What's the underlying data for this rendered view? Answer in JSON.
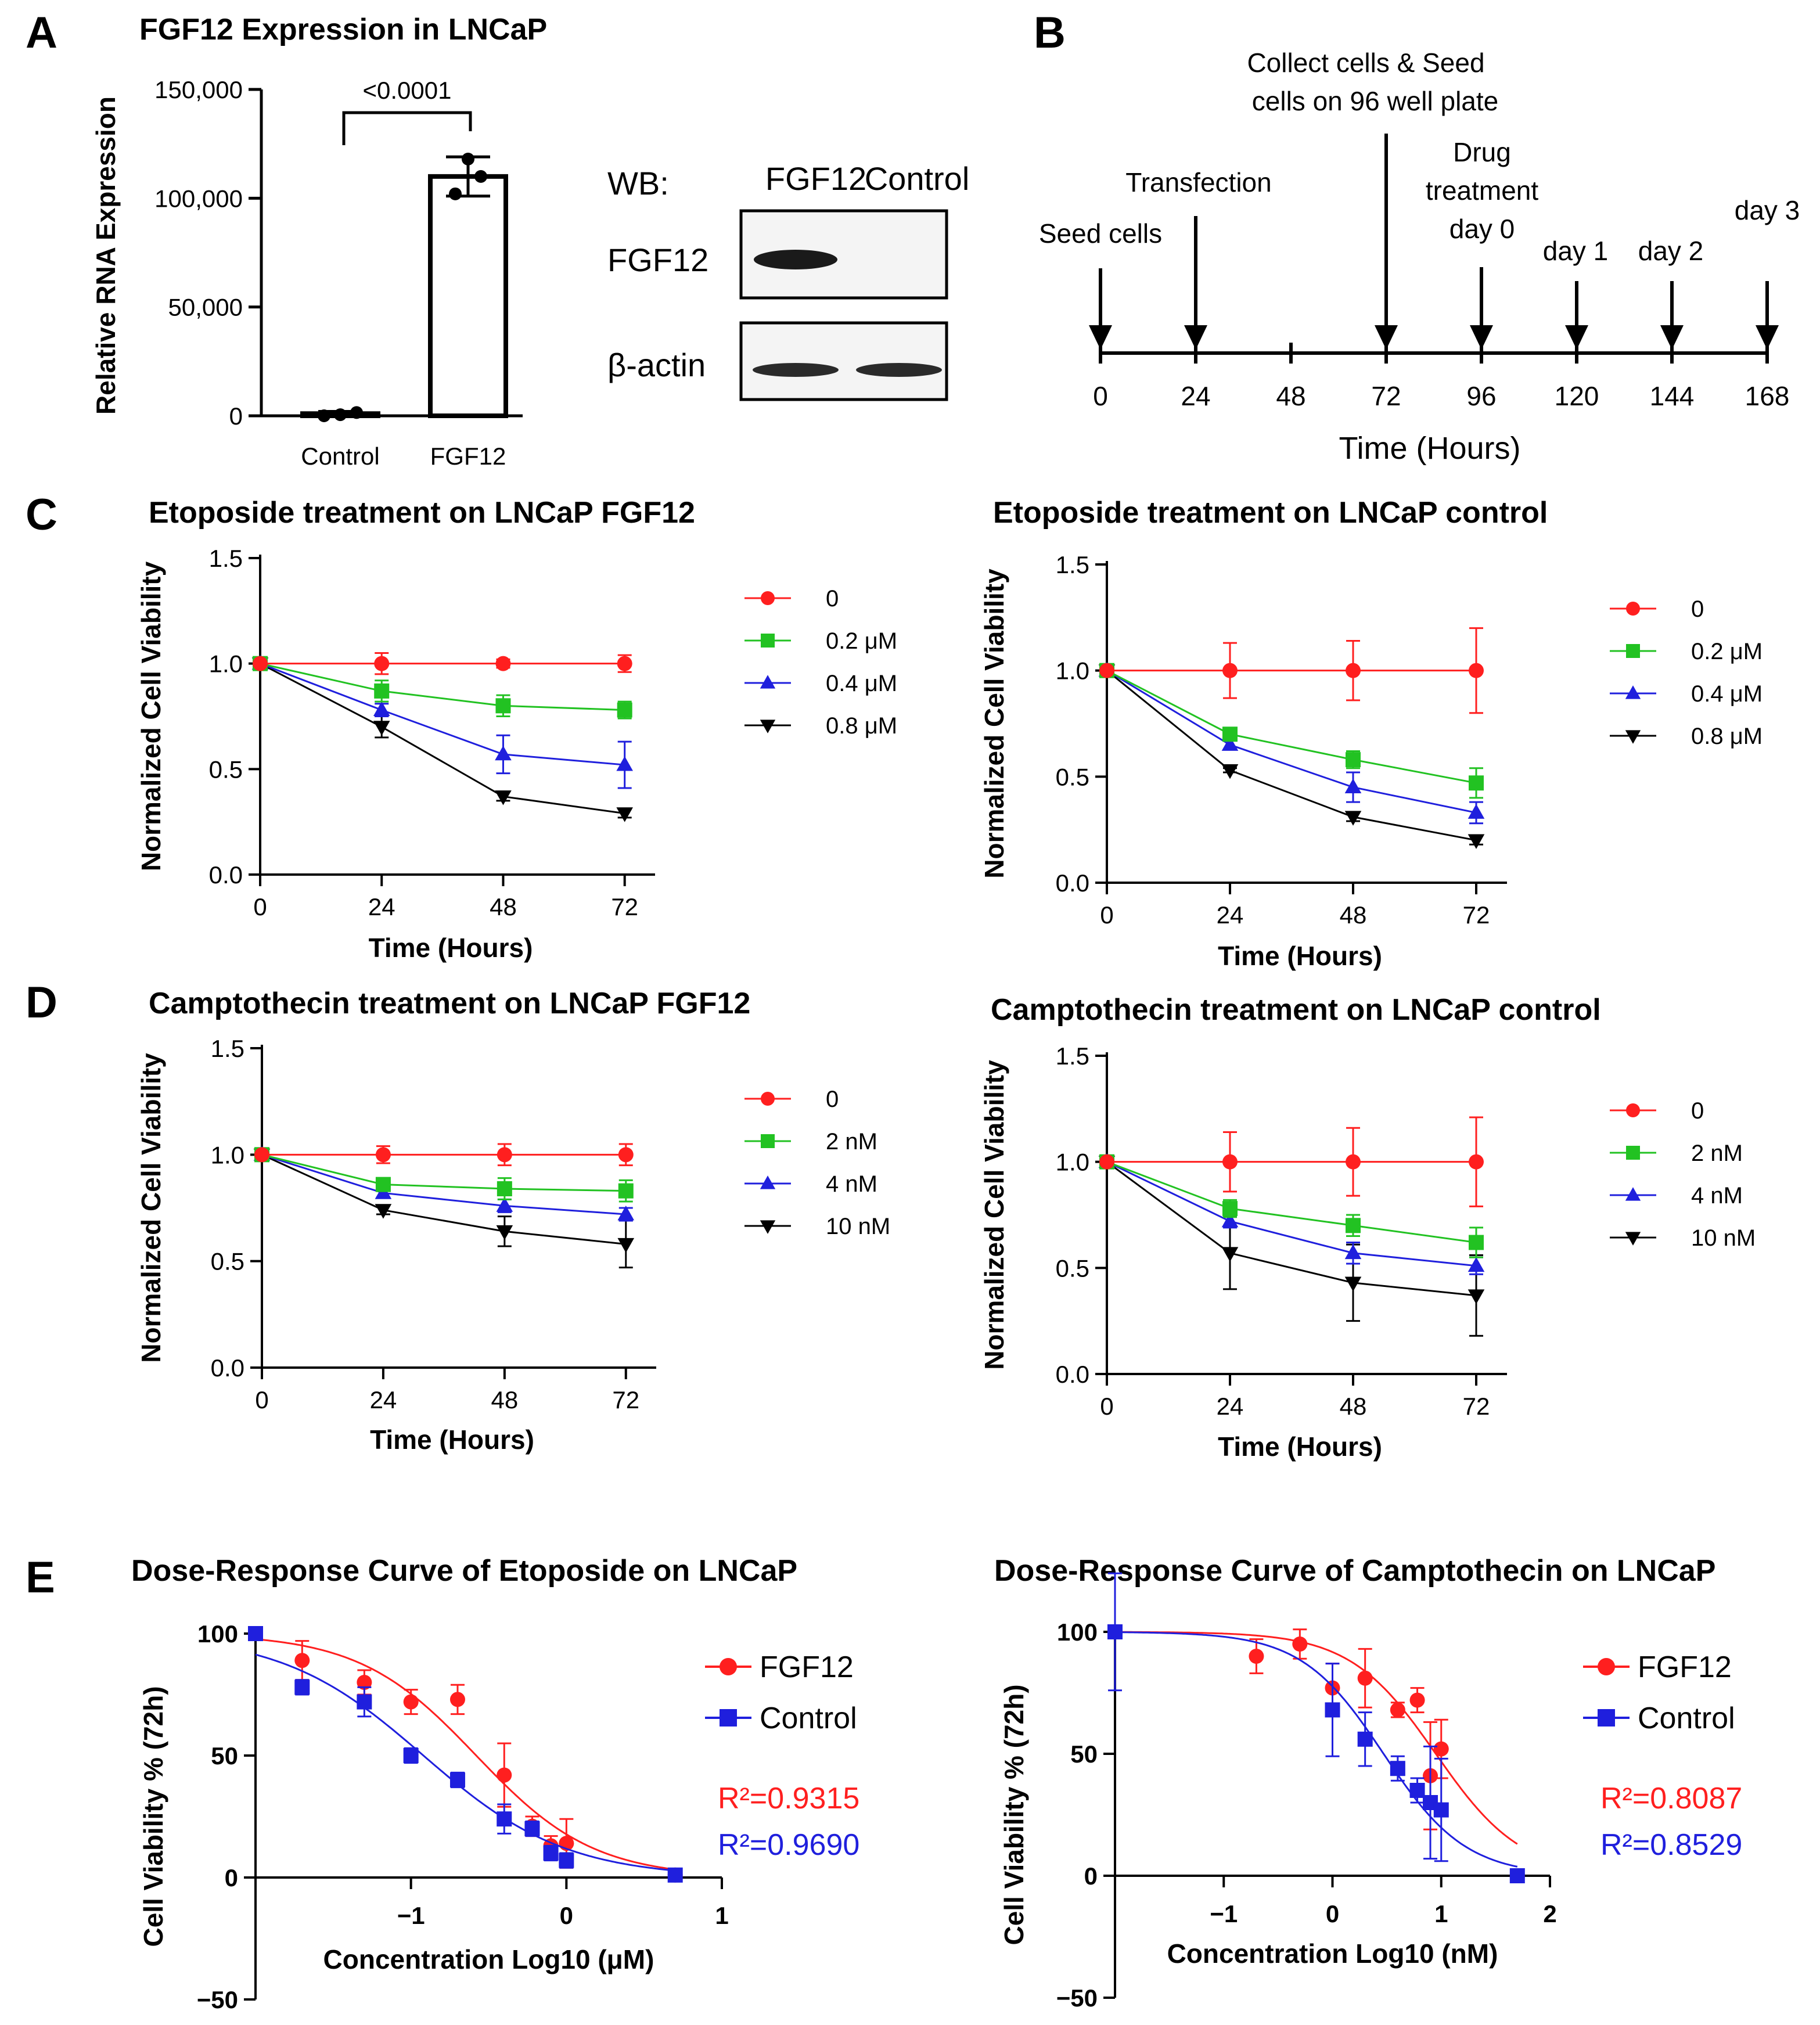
{
  "panel_labels": [
    "A",
    "B",
    "C",
    "D",
    "E"
  ],
  "colors": {
    "red": "#ff1f1f",
    "green": "#22c222",
    "blue": "#1f1fdd",
    "black": "#000000"
  },
  "panel_A": {
    "chart": {
      "type": "bar",
      "title": "FGF12 Expression in LNCaP",
      "ylabel": "Relative RNA Expression",
      "categories": [
        "Control",
        "FGF12"
      ],
      "values": [
        1000,
        110000
      ],
      "errors": [
        1000,
        9000
      ],
      "points": [
        [
          0,
          500,
          1500
        ],
        [
          118000,
          102000,
          110000
        ]
      ],
      "ylim": [
        0,
        150000
      ],
      "ytick_values": [
        0,
        50000,
        100000,
        150000
      ],
      "ytick_labels": [
        "0",
        "50,000",
        "100,000",
        "150,000"
      ],
      "significance": "<0.0001"
    },
    "western_blot": {
      "prefix": "WB:",
      "lanes": [
        "FGF12",
        "Control"
      ],
      "rows": [
        "FGF12",
        "β-actin"
      ]
    }
  },
  "panel_B": {
    "xlabel": "Time (Hours)",
    "ticks": [
      "0",
      "24",
      "48",
      "72",
      "96",
      "120",
      "144",
      "168"
    ],
    "tick_values": [
      0,
      24,
      48,
      72,
      96,
      120,
      144,
      168
    ],
    "events": [
      {
        "lines": [
          "Seed cells"
        ],
        "at": 0
      },
      {
        "lines": [
          "Transfection"
        ],
        "at": 24
      },
      {
        "lines": [
          "Collect cells & Seed",
          "cells on 96 well plate"
        ],
        "at": 72
      },
      {
        "lines": [
          "Drug",
          "treatment",
          "day 0"
        ],
        "at": 96
      },
      {
        "lines": [
          "day 1"
        ],
        "at": 120
      },
      {
        "lines": [
          "day 2"
        ],
        "at": 144
      },
      {
        "lines": [
          "day 3"
        ],
        "at": 168
      }
    ]
  },
  "chart_data": [
    {
      "type": "line",
      "id": "C1",
      "title": "Etoposide treatment on LNCaP FGF12",
      "xlabel": "Time (Hours)",
      "ylabel": "Normalized Cell Viability",
      "x": [
        0,
        24,
        48,
        72
      ],
      "xlim": [
        0,
        78
      ],
      "ylim": [
        0,
        1.5
      ],
      "xticks": [
        "0",
        "24",
        "48",
        "72"
      ],
      "xtick_values": [
        0,
        24,
        48,
        72
      ],
      "yticks": [
        "0.0",
        "0.5",
        "1.0",
        "1.5"
      ],
      "ytick_values": [
        0,
        0.5,
        1.0,
        1.5
      ],
      "series": [
        {
          "name": "0",
          "color": "#ff1f1f",
          "marker": "circle",
          "values": [
            1.0,
            1.0,
            1.0,
            1.0
          ],
          "errors": [
            0,
            0.05,
            0.02,
            0.04
          ]
        },
        {
          "name": "0.2 μM",
          "color": "#22c222",
          "marker": "square",
          "values": [
            1.0,
            0.87,
            0.8,
            0.78
          ],
          "errors": [
            0,
            0.05,
            0.05,
            0.04
          ]
        },
        {
          "name": "0.4 μM",
          "color": "#1f1fdd",
          "marker": "triangle-up",
          "values": [
            1.0,
            0.78,
            0.57,
            0.52
          ],
          "errors": [
            0,
            0.03,
            0.09,
            0.11
          ]
        },
        {
          "name": "0.8 μM",
          "color": "#000000",
          "marker": "triangle-down",
          "values": [
            1.0,
            0.7,
            0.37,
            0.29
          ],
          "errors": [
            0,
            0.05,
            0.02,
            0.02
          ]
        }
      ]
    },
    {
      "type": "line",
      "id": "C2",
      "title": "Etoposide treatment on LNCaP control",
      "xlabel": "Time (Hours)",
      "ylabel": "Normalized Cell Viability",
      "x": [
        0,
        24,
        48,
        72
      ],
      "xlim": [
        0,
        78
      ],
      "ylim": [
        0,
        1.5
      ],
      "xticks": [
        "0",
        "24",
        "48",
        "72"
      ],
      "xtick_values": [
        0,
        24,
        48,
        72
      ],
      "yticks": [
        "0.0",
        "0.5",
        "1.0",
        "1.5"
      ],
      "ytick_values": [
        0,
        0.5,
        1.0,
        1.5
      ],
      "series": [
        {
          "name": "0",
          "color": "#ff1f1f",
          "marker": "circle",
          "values": [
            1.0,
            1.0,
            1.0,
            1.0
          ],
          "errors": [
            0,
            0.13,
            0.14,
            0.2
          ]
        },
        {
          "name": "0.2 μM",
          "color": "#22c222",
          "marker": "square",
          "values": [
            1.0,
            0.7,
            0.58,
            0.47
          ],
          "errors": [
            0,
            0.02,
            0.04,
            0.07
          ]
        },
        {
          "name": "0.4 μM",
          "color": "#1f1fdd",
          "marker": "triangle-up",
          "values": [
            1.0,
            0.65,
            0.45,
            0.33
          ],
          "errors": [
            0,
            0.02,
            0.07,
            0.05
          ]
        },
        {
          "name": "0.8 μM",
          "color": "#000000",
          "marker": "triangle-down",
          "values": [
            1.0,
            0.53,
            0.31,
            0.2
          ],
          "errors": [
            0,
            0.01,
            0.02,
            0.02
          ]
        }
      ]
    },
    {
      "type": "line",
      "id": "D1",
      "title": "Camptothecin treatment on LNCaP FGF12",
      "xlabel": "Time (Hours)",
      "ylabel": "Normalized Cell Viability",
      "x": [
        0,
        24,
        48,
        72
      ],
      "xlim": [
        0,
        78
      ],
      "ylim": [
        0,
        1.5
      ],
      "xticks": [
        "0",
        "24",
        "48",
        "72"
      ],
      "xtick_values": [
        0,
        24,
        48,
        72
      ],
      "yticks": [
        "0.0",
        "0.5",
        "1.0",
        "1.5"
      ],
      "ytick_values": [
        0,
        0.5,
        1.0,
        1.5
      ],
      "series": [
        {
          "name": "0",
          "color": "#ff1f1f",
          "marker": "circle",
          "values": [
            1.0,
            1.0,
            1.0,
            1.0
          ],
          "errors": [
            0,
            0.04,
            0.05,
            0.05
          ]
        },
        {
          "name": "2 nM",
          "color": "#22c222",
          "marker": "square",
          "values": [
            1.0,
            0.86,
            0.84,
            0.83
          ],
          "errors": [
            0,
            0.02,
            0.05,
            0.05
          ]
        },
        {
          "name": "4 nM",
          "color": "#1f1fdd",
          "marker": "triangle-up",
          "values": [
            1.0,
            0.82,
            0.76,
            0.72
          ],
          "errors": [
            0,
            0.02,
            0.03,
            0.03
          ]
        },
        {
          "name": "10 nM",
          "color": "#000000",
          "marker": "triangle-down",
          "values": [
            1.0,
            0.74,
            0.64,
            0.58
          ],
          "errors": [
            0,
            0.02,
            0.07,
            0.11
          ]
        }
      ]
    },
    {
      "type": "line",
      "id": "D2",
      "title": "Camptothecin treatment on LNCaP control",
      "xlabel": "Time (Hours)",
      "ylabel": "Normalized Cell Viability",
      "x": [
        0,
        24,
        48,
        72
      ],
      "xlim": [
        0,
        78
      ],
      "ylim": [
        0,
        1.5
      ],
      "xticks": [
        "0",
        "24",
        "48",
        "72"
      ],
      "xtick_values": [
        0,
        24,
        48,
        72
      ],
      "yticks": [
        "0.0",
        "0.5",
        "1.0",
        "1.5"
      ],
      "ytick_values": [
        0,
        0.5,
        1.0,
        1.5
      ],
      "series": [
        {
          "name": "0",
          "color": "#ff1f1f",
          "marker": "circle",
          "values": [
            1.0,
            1.0,
            1.0,
            1.0
          ],
          "errors": [
            0,
            0.14,
            0.16,
            0.21
          ]
        },
        {
          "name": "2 nM",
          "color": "#22c222",
          "marker": "square",
          "values": [
            1.0,
            0.78,
            0.7,
            0.62
          ],
          "errors": [
            0,
            0.04,
            0.05,
            0.07
          ]
        },
        {
          "name": "4 nM",
          "color": "#1f1fdd",
          "marker": "triangle-up",
          "values": [
            1.0,
            0.72,
            0.57,
            0.51
          ],
          "errors": [
            0,
            0.03,
            0.05,
            0.04
          ]
        },
        {
          "name": "10 nM",
          "color": "#000000",
          "marker": "triangle-down",
          "values": [
            1.0,
            0.57,
            0.43,
            0.37
          ],
          "errors": [
            0,
            0.17,
            0.18,
            0.19
          ]
        }
      ]
    },
    {
      "type": "scatter",
      "id": "E1",
      "title": "Dose-Response Curve of Etoposide on LNCaP",
      "xlabel": "Concentration Log10 (μM)",
      "ylabel": "Cell Viability % (72h)",
      "xlim": [
        -2,
        1
      ],
      "ylim": [
        -50,
        100
      ],
      "xticks": [
        "−1",
        "0",
        "1"
      ],
      "xtick_values": [
        -1,
        0,
        1
      ],
      "yticks": [
        "−50",
        "0",
        "50",
        "100"
      ],
      "ytick_values": [
        -50,
        0,
        50,
        100
      ],
      "r2": [
        {
          "text": "R²=0.9315",
          "color": "#ff1f1f"
        },
        {
          "text": "R²=0.9690",
          "color": "#1f1fdd"
        }
      ],
      "series": [
        {
          "name": "FGF12",
          "color": "#ff1f1f",
          "marker": "circle",
          "x": [
            -2.0,
            -1.7,
            -1.3,
            -1.0,
            -0.7,
            -0.4,
            -0.22,
            -0.1,
            0.0,
            0.7
          ],
          "y": [
            100,
            89,
            80,
            72,
            73,
            42,
            21,
            13,
            14,
            1
          ],
          "err": [
            2,
            8,
            5,
            5,
            6,
            13,
            4,
            4,
            10,
            1
          ],
          "fit": {
            "ic50_log": -0.58,
            "hill": 1.15,
            "top": 100,
            "bottom": 0
          }
        },
        {
          "name": "Control",
          "color": "#1f1fdd",
          "marker": "square",
          "x": [
            -2.0,
            -1.7,
            -1.3,
            -1.0,
            -0.7,
            -0.4,
            -0.22,
            -0.1,
            0.0,
            0.7
          ],
          "y": [
            100,
            78,
            72,
            50,
            40,
            24,
            20,
            10,
            7,
            1
          ],
          "err": [
            2,
            3,
            6,
            3,
            3,
            6,
            3,
            3,
            3,
            1
          ],
          "fit": {
            "ic50_log": -0.92,
            "hill": 0.95,
            "top": 100,
            "bottom": 0
          }
        }
      ]
    },
    {
      "type": "scatter",
      "id": "E2",
      "title": "Dose-Response Curve of Camptothecin on LNCaP",
      "xlabel": "Concentration Log10 (nM)",
      "ylabel": "Cell Viability % (72h)",
      "xlim": [
        -2,
        2
      ],
      "ylim": [
        -50,
        100
      ],
      "xticks": [
        "−1",
        "0",
        "1",
        "2"
      ],
      "xtick_values": [
        -1,
        0,
        1,
        2
      ],
      "yticks": [
        "−50",
        "0",
        "50",
        "100"
      ],
      "ytick_values": [
        -50,
        0,
        50,
        100
      ],
      "r2": [
        {
          "text": "R²=0.8087",
          "color": "#ff1f1f"
        },
        {
          "text": "R²=0.8529",
          "color": "#1f1fdd"
        }
      ],
      "series": [
        {
          "name": "FGF12",
          "color": "#ff1f1f",
          "marker": "circle",
          "x": [
            -2.0,
            -0.7,
            -0.3,
            0.0,
            0.3,
            0.6,
            0.78,
            0.9,
            1.0,
            1.7
          ],
          "y": [
            100,
            90,
            95,
            77,
            81,
            68,
            72,
            41,
            52,
            0
          ],
          "err": [
            2,
            7,
            6,
            10,
            12,
            3,
            5,
            22,
            12,
            1
          ],
          "fit": {
            "ic50_log": 0.95,
            "hill": 1.1,
            "top": 100,
            "bottom": 0
          }
        },
        {
          "name": "Control",
          "color": "#1f1fdd",
          "marker": "square",
          "x": [
            -2.0,
            0.0,
            0.3,
            0.6,
            0.78,
            0.9,
            1.0,
            1.7
          ],
          "y": [
            100,
            68,
            56,
            44,
            35,
            30,
            27,
            0
          ],
          "err": [
            24,
            19,
            11,
            5,
            5,
            23,
            21,
            1
          ],
          "fit": {
            "ic50_log": 0.47,
            "hill": 1.15,
            "top": 100,
            "bottom": 0
          }
        }
      ]
    }
  ]
}
